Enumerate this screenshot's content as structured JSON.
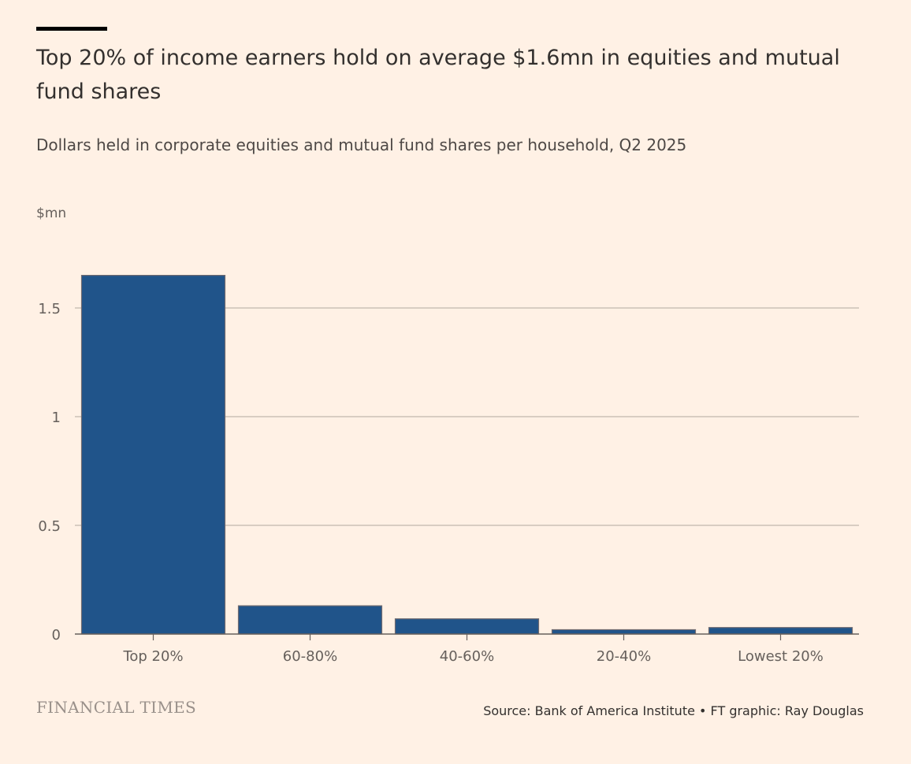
{
  "chart_data": {
    "type": "bar",
    "title": "Top 20% of income earners hold on average $1.6mn in equities and mutual fund shares",
    "subtitle": "Dollars held in corporate equities and mutual fund shares per household, Q2 2025",
    "ylabel": "$mn",
    "xlabel": "",
    "categories": [
      "Top 20%",
      "60-80%",
      "40-60%",
      "20-40%",
      "Lowest 20%"
    ],
    "values": [
      1.65,
      0.13,
      0.07,
      0.02,
      0.03
    ],
    "ylim": [
      0,
      1.7
    ],
    "yticks": [
      0,
      0.5,
      1,
      1.5
    ],
    "ytick_labels": [
      "0",
      "0.5",
      "1",
      "1.5"
    ],
    "grid": true,
    "bar_color": "#20548A",
    "gridline_color": "#CCC1B7",
    "axis_color": "#66605C"
  },
  "footer": {
    "logo": "FINANCIAL TIMES",
    "source": "Source: Bank of America Institute • FT graphic: Ray Douglas"
  }
}
